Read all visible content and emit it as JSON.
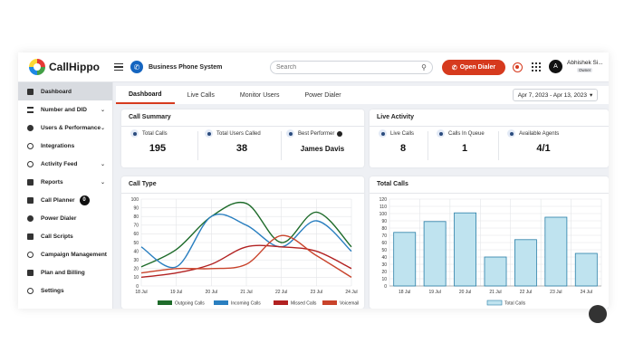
{
  "topbar": {
    "logo_text": "CallHippo",
    "business_label": "Business Phone System",
    "search_placeholder": "Search",
    "dialer_label": "Open Dialer",
    "avatar_initial": "A",
    "user_name": "Abhishek Si...",
    "user_role": "Owner"
  },
  "sidebar": {
    "items": [
      {
        "label": "Dashboard"
      },
      {
        "label": "Number and DID"
      },
      {
        "label": "Users & Performance"
      },
      {
        "label": "Integrations"
      },
      {
        "label": "Activity Feed"
      },
      {
        "label": "Reports"
      },
      {
        "label": "Call Planner",
        "badge": "0"
      },
      {
        "label": "Power Dialer"
      },
      {
        "label": "Call Scripts"
      },
      {
        "label": "Campaign Management"
      },
      {
        "label": "Plan and Billing"
      },
      {
        "label": "Settings"
      }
    ]
  },
  "tabs": [
    {
      "label": "Dashboard"
    },
    {
      "label": "Live Calls"
    },
    {
      "label": "Monitor Users"
    },
    {
      "label": "Power Dialer"
    }
  ],
  "date_range": "Apr 7, 2023 - Apr 13, 2023",
  "call_summary": {
    "title": "Call Summary",
    "total_calls_label": "Total Calls",
    "total_calls_value": "195",
    "users_called_label": "Total Users Called",
    "users_called_value": "38",
    "best_performer_label": "Best Performer",
    "best_performer_value": "James Davis"
  },
  "live_activity": {
    "title": "Live Activity",
    "live_calls_label": "Live Calls",
    "live_calls_value": "8",
    "queue_label": "Calls In Queue",
    "queue_value": "1",
    "agents_label": "Available Agents",
    "agents_value": "4/1"
  },
  "colors": {
    "accent": "#d63a1e",
    "outgoing": "#1e6b2a",
    "incoming": "#2a7fc0",
    "missed": "#b22222",
    "voicemail": "#c9432b",
    "bar_fill": "#bfe3ef",
    "bar_stroke": "#2a7fa8"
  },
  "chart_data": [
    {
      "type": "line",
      "title": "Call Type",
      "categories": [
        "18 Jul",
        "19 Jul",
        "20 Jul",
        "21 Jul",
        "22 Jul",
        "23 Jul",
        "24 Jul"
      ],
      "ylim": [
        0,
        100
      ],
      "yticks": [
        0,
        10,
        20,
        30,
        40,
        50,
        60,
        70,
        80,
        90,
        100
      ],
      "grid": true,
      "legend": "bottom",
      "series": [
        {
          "name": "Outgoing Calls",
          "values": [
            22,
            42,
            80,
            95,
            50,
            85,
            45
          ]
        },
        {
          "name": "Incoming Calls",
          "values": [
            45,
            22,
            80,
            70,
            45,
            75,
            40
          ]
        },
        {
          "name": "Missed Calls",
          "values": [
            10,
            15,
            25,
            45,
            45,
            40,
            20
          ]
        },
        {
          "name": "Voicemail",
          "values": [
            15,
            20,
            20,
            25,
            58,
            35,
            10
          ]
        }
      ]
    },
    {
      "type": "bar",
      "title": "Total Calls",
      "categories": [
        "18 Jul",
        "19 Jul",
        "20 Jul",
        "21 Jul",
        "22 Jul",
        "23 Jul",
        "24 Jul"
      ],
      "values": [
        74,
        89,
        101,
        40,
        64,
        95,
        45
      ],
      "ylim": [
        0,
        120
      ],
      "yticks": [
        0,
        10,
        20,
        30,
        40,
        50,
        60,
        70,
        80,
        90,
        100,
        110,
        120
      ],
      "grid": true,
      "legend": "bottom",
      "series_name": "Total Calls"
    }
  ]
}
